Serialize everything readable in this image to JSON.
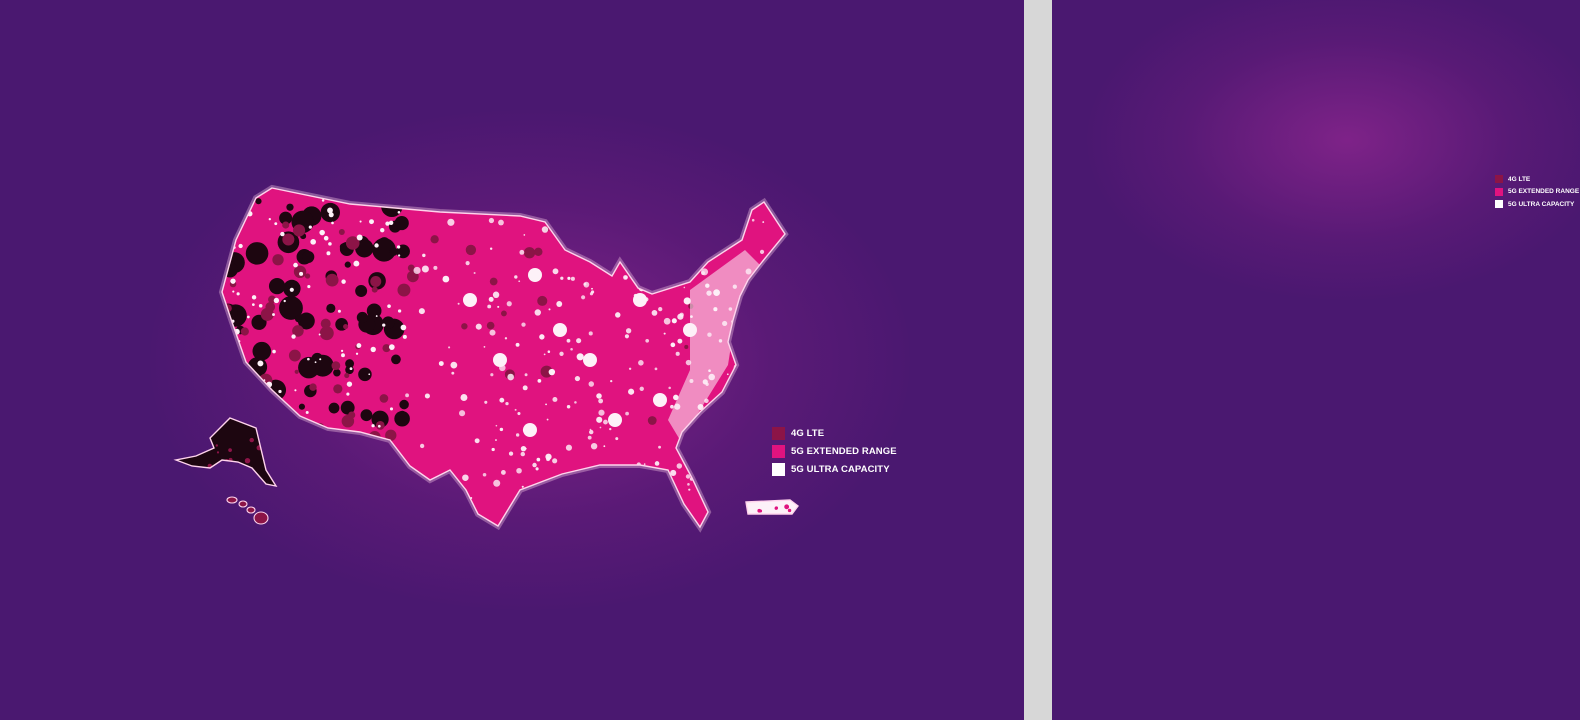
{
  "legend": {
    "items": [
      {
        "label": "4G LTE",
        "color": "#8c1447"
      },
      {
        "label": "5G EXTENDED RANGE",
        "color": "#e0137f"
      },
      {
        "label": "5G ULTRA CAPACITY",
        "color": "#ffffff"
      }
    ]
  },
  "colors": {
    "background": "#4a1870",
    "divider": "#d7d7d7",
    "no_coverage": "#1d0610",
    "lte": "#8c1447",
    "extended_range": "#e0137f",
    "ultra_capacity": "#fdf1f8",
    "outline": "#ffd3ec"
  },
  "regions": [
    "contiguous-us",
    "alaska",
    "hawaii",
    "puerto-rico"
  ]
}
